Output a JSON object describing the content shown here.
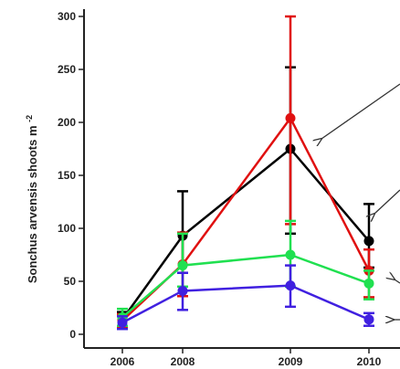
{
  "chart_data": {
    "type": "line",
    "title": "",
    "ylabel": "Sonchus arvensis shoots m",
    "ylabel_superscript": "-2",
    "xlabel": "",
    "x": [
      "2006",
      "2008",
      "2009",
      "2010"
    ],
    "ylim": [
      0,
      300
    ],
    "yticks": [
      0,
      50,
      100,
      150,
      200,
      250,
      300
    ],
    "grid": false,
    "legend": "none",
    "series": [
      {
        "color": "#000000",
        "values": [
          14,
          93,
          175,
          88
        ],
        "err_low": [
          7,
          35,
          80,
          25
        ],
        "err_high": [
          7,
          42,
          77,
          35
        ]
      },
      {
        "color": "#e01010",
        "values": [
          13,
          66,
          204,
          60
        ],
        "err_low": [
          6,
          30,
          100,
          25
        ],
        "err_high": [
          6,
          30,
          96,
          20
        ]
      },
      {
        "color": "#20e050",
        "values": [
          16,
          65,
          75,
          48
        ],
        "err_low": [
          8,
          20,
          30,
          15
        ],
        "err_high": [
          8,
          30,
          32,
          12
        ]
      },
      {
        "color": "#4020e0",
        "values": [
          11,
          41,
          46,
          14
        ],
        "err_low": [
          6,
          18,
          20,
          6
        ],
        "err_high": [
          6,
          17,
          19,
          6
        ]
      }
    ],
    "annotations": [
      {
        "type": "arrow",
        "label": ""
      },
      {
        "type": "arrow",
        "label": ""
      },
      {
        "type": "arrow",
        "label": ""
      },
      {
        "type": "arrow",
        "label": ""
      }
    ]
  }
}
